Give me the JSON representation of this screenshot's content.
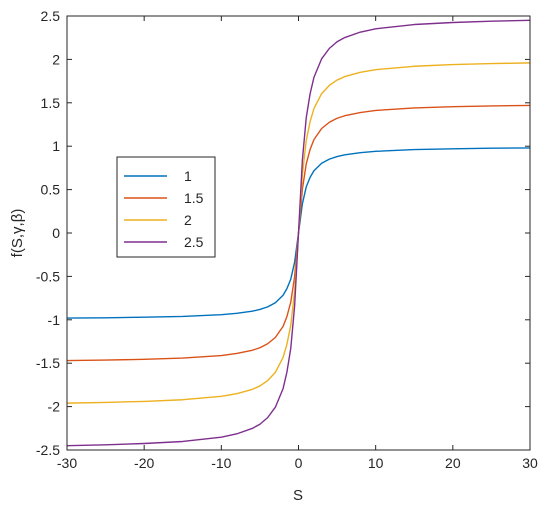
{
  "chart_data": {
    "type": "line",
    "xlabel": "S",
    "ylabel": "f(S,γ,β)",
    "xlim": [
      -30,
      30
    ],
    "ylim": [
      -2.5,
      2.5
    ],
    "x_ticks": [
      -30,
      -20,
      -10,
      0,
      10,
      20,
      30
    ],
    "y_ticks": [
      -2.5,
      -2,
      -1.5,
      -1,
      -0.5,
      0,
      0.5,
      1,
      1.5,
      2,
      2.5
    ],
    "x_tick_labels": [
      "-30",
      "-20",
      "-10",
      "0",
      "10",
      "20",
      "30"
    ],
    "y_tick_labels": [
      "-2.5",
      "-2",
      "-1.5",
      "-1",
      "-0.5",
      "0",
      "0.5",
      "1",
      "1.5",
      "2",
      "2.5"
    ],
    "grid": false,
    "legend_position": "left",
    "x": [
      -30,
      -25,
      -20,
      -15,
      -10,
      -8,
      -6,
      -5,
      -4,
      -3,
      -2,
      -1.5,
      -1,
      -0.5,
      0,
      0.5,
      1,
      1.5,
      2,
      3,
      4,
      5,
      6,
      8,
      10,
      15,
      20,
      25,
      30
    ],
    "series": [
      {
        "name": "1",
        "color": "#0072BD",
        "values": [
          -0.98,
          -0.977,
          -0.97,
          -0.961,
          -0.941,
          -0.925,
          -0.901,
          -0.881,
          -0.851,
          -0.803,
          -0.717,
          -0.641,
          -0.531,
          -0.335,
          0,
          0.335,
          0.531,
          0.641,
          0.717,
          0.803,
          0.851,
          0.881,
          0.901,
          0.925,
          0.941,
          0.961,
          0.97,
          0.977,
          0.98
        ]
      },
      {
        "name": "1.5",
        "color": "#D95319",
        "values": [
          -1.47,
          -1.464,
          -1.455,
          -1.441,
          -1.412,
          -1.388,
          -1.351,
          -1.322,
          -1.276,
          -1.204,
          -1.076,
          -0.962,
          -0.796,
          -0.502,
          0,
          0.502,
          0.796,
          0.962,
          1.076,
          1.204,
          1.276,
          1.322,
          1.351,
          1.388,
          1.412,
          1.441,
          1.455,
          1.464,
          1.47
        ]
      },
      {
        "name": "2",
        "color": "#EDB120",
        "values": [
          -1.96,
          -1.952,
          -1.94,
          -1.921,
          -1.882,
          -1.851,
          -1.802,
          -1.762,
          -1.701,
          -1.606,
          -1.434,
          -1.282,
          -1.062,
          -0.67,
          0,
          0.67,
          1.062,
          1.282,
          1.434,
          1.606,
          1.701,
          1.762,
          1.802,
          1.851,
          1.882,
          1.921,
          1.94,
          1.952,
          1.96
        ]
      },
      {
        "name": "2.5",
        "color": "#7E2F8E",
        "values": [
          -2.45,
          -2.44,
          -2.425,
          -2.402,
          -2.353,
          -2.314,
          -2.252,
          -2.203,
          -2.127,
          -2.007,
          -1.793,
          -1.603,
          -1.327,
          -0.837,
          0,
          0.837,
          1.327,
          1.603,
          1.793,
          2.007,
          2.127,
          2.203,
          2.252,
          2.314,
          2.353,
          2.402,
          2.425,
          2.44,
          2.45
        ]
      }
    ]
  }
}
